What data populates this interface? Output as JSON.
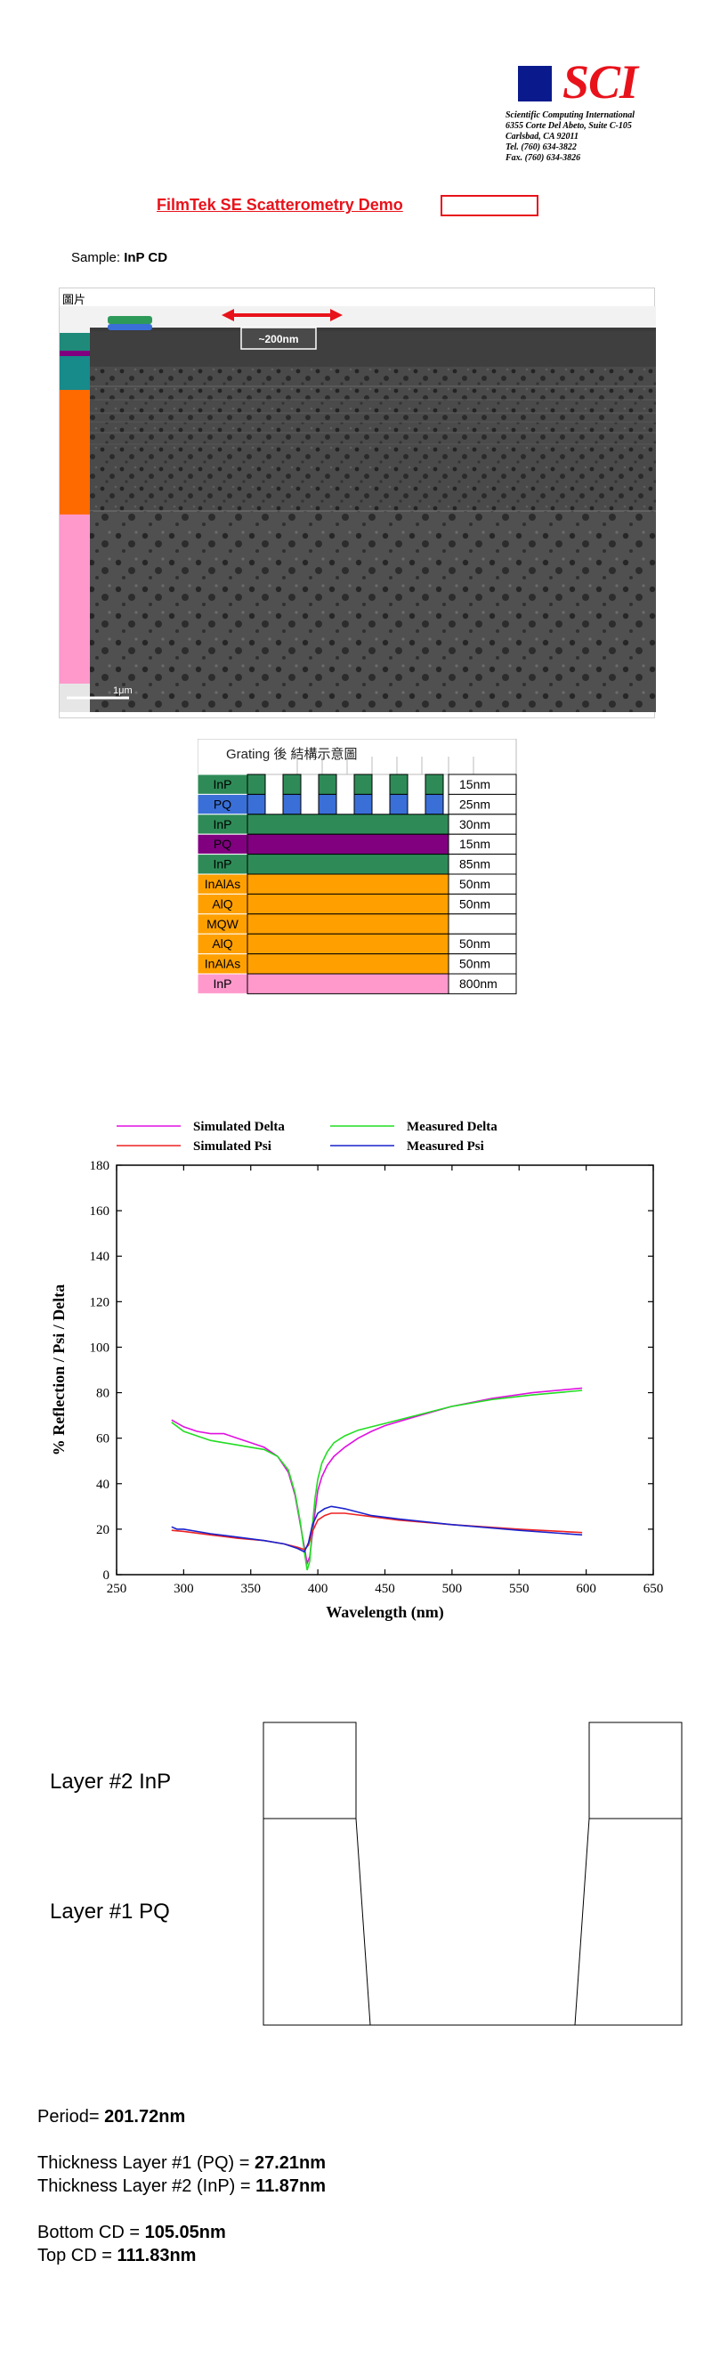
{
  "header": {
    "brand": "SCI",
    "company": "Scientific Computing International",
    "address_line1": "6355 Corte Del Abeto, Suite C-105",
    "address_line2": "Carlsbad, CA  92011",
    "tel": "Tel.   (760) 634-3822",
    "fax": "Fax. (760) 634-3826",
    "brand_blue": "#0a1a8c",
    "brand_red": "#e8121b"
  },
  "title": "FilmTek SE Scatterometry Demo",
  "sample": {
    "label": "Sample: ",
    "value": "InP CD"
  },
  "tem": {
    "caption": "圖片",
    "dimension": "~200nm",
    "scale_label": "1μm"
  },
  "layer_table": {
    "header": "Grating 後    結構示意圖",
    "rows": [
      {
        "material": "InP",
        "thickness": "15nm",
        "color": "#2e8b57"
      },
      {
        "material": "PQ",
        "thickness": "25nm",
        "color": "#3a6fd8"
      },
      {
        "material": "InP",
        "thickness": "30nm",
        "color": "#2e8b57"
      },
      {
        "material": "PQ",
        "thickness": "15nm",
        "color": "#800080"
      },
      {
        "material": "InP",
        "thickness": "85nm",
        "color": "#2e8b57"
      },
      {
        "material": "InAlAs",
        "thickness": "50nm",
        "color": "#ffa000"
      },
      {
        "material": "AlQ",
        "thickness": "50nm",
        "color": "#ffa000"
      },
      {
        "material": "MQW",
        "thickness": "",
        "color": "#ffa000"
      },
      {
        "material": "AlQ",
        "thickness": "50nm",
        "color": "#ffa000"
      },
      {
        "material": "InAlAs",
        "thickness": "50nm",
        "color": "#ffa000"
      },
      {
        "material": "InP",
        "thickness": "800nm",
        "color": "#ff99cc"
      }
    ]
  },
  "chart_data": {
    "type": "line",
    "title": "",
    "xlabel": "Wavelength (nm)",
    "ylabel": "% Reflection / Psi / Delta",
    "xlim": [
      250,
      650
    ],
    "ylim": [
      0,
      180
    ],
    "xticks": [
      250,
      300,
      350,
      400,
      450,
      500,
      550,
      600,
      650
    ],
    "yticks": [
      0,
      20,
      40,
      60,
      80,
      100,
      120,
      140,
      160,
      180
    ],
    "legend_position": "top",
    "series": [
      {
        "name": "Simulated Delta",
        "color": "#e010e0",
        "x": [
          291,
          300,
          310,
          320,
          330,
          340,
          350,
          360,
          370,
          378,
          383,
          387,
          390,
          392,
          394,
          396,
          398,
          400,
          403,
          407,
          412,
          420,
          430,
          440,
          450,
          470,
          500,
          530,
          560,
          597
        ],
        "y": [
          68,
          65,
          63,
          62,
          62,
          60,
          58,
          56,
          52,
          45,
          35,
          22,
          12,
          5,
          8,
          18,
          28,
          37,
          43,
          48,
          52,
          56,
          60,
          63,
          65.5,
          69,
          74,
          77.5,
          80,
          82
        ]
      },
      {
        "name": "Measured Delta",
        "color": "#22dd22",
        "x": [
          291,
          300,
          310,
          320,
          330,
          340,
          350,
          360,
          370,
          378,
          383,
          387,
          390,
          392,
          394,
          396,
          398,
          400,
          403,
          407,
          412,
          420,
          430,
          440,
          450,
          470,
          500,
          530,
          560,
          597
        ],
        "y": [
          67,
          63,
          61,
          59,
          58,
          57,
          56,
          55,
          52,
          46,
          36,
          23,
          10,
          2,
          6,
          22,
          34,
          42,
          49,
          54,
          58,
          61,
          63.5,
          65,
          66.5,
          69.5,
          74,
          77,
          79,
          81
        ]
      },
      {
        "name": "Simulated Psi",
        "color": "#ee2222",
        "x": [
          291,
          300,
          320,
          340,
          360,
          375,
          385,
          390,
          393,
          396,
          400,
          405,
          410,
          420,
          440,
          460,
          500,
          550,
          597
        ],
        "y": [
          19.5,
          19,
          17.5,
          16,
          15,
          13.5,
          12,
          11,
          13,
          19,
          24,
          26,
          27,
          27,
          25.5,
          24,
          22,
          20,
          18.5
        ]
      },
      {
        "name": "Measured Psi",
        "color": "#1a22cc",
        "x": [
          291,
          295,
          300,
          320,
          340,
          360,
          375,
          385,
          390,
          393,
          396,
          400,
          405,
          410,
          420,
          440,
          460,
          500,
          550,
          597
        ],
        "y": [
          21,
          20,
          20,
          18,
          16.5,
          15,
          13.5,
          11.5,
          10,
          14,
          22,
          27,
          29,
          30,
          29,
          26,
          24.5,
          22,
          19.5,
          17.5
        ]
      }
    ]
  },
  "profile": {
    "layer2_label": "Layer #2 InP",
    "layer1_label": "Layer #1 PQ"
  },
  "results": {
    "period_label": "Period= ",
    "period_value": "201.72nm",
    "thick1_label": "Thickness Layer #1 (PQ) = ",
    "thick1_value": "27.21nm",
    "thick2_label": "Thickness Layer #2 (InP) = ",
    "thick2_value": "11.87nm",
    "bottom_label": "Bottom CD = ",
    "bottom_value": "105.05nm",
    "top_label": "Top CD = ",
    "top_value": "111.83nm"
  }
}
